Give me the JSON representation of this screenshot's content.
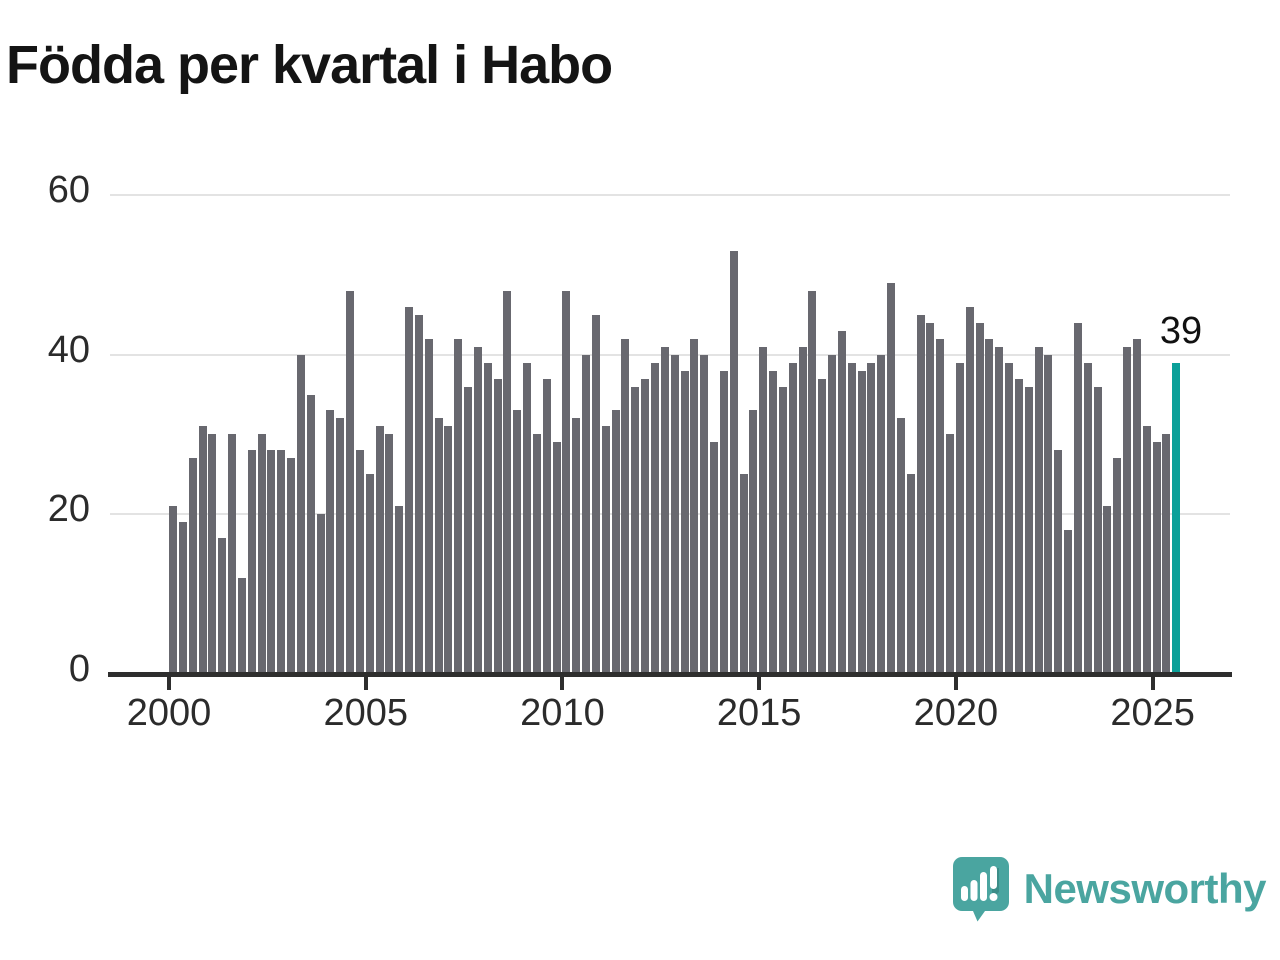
{
  "title": "Födda per kvartal i Habo",
  "annotation_label": "39",
  "branding": {
    "logo_text": "Newsworthy",
    "color": "#4aa5a0"
  },
  "colors": {
    "bar": "#68686f",
    "highlight": "#0ba099",
    "grid": "#e3e3e3",
    "axis": "#2e2e2e",
    "tick_text": "#2b2b2b",
    "title_text": "#141414"
  },
  "chart_data": {
    "type": "bar",
    "title": "Födda per kvartal i Habo",
    "frequency": "quarterly",
    "period_start": "2000 Q1",
    "period_end": "2025 Q3",
    "grid": "horizontal",
    "ylim": [
      0,
      60
    ],
    "y_ticks": [
      {
        "label": "0",
        "value": 0
      },
      {
        "label": "20",
        "value": 20
      },
      {
        "label": "40",
        "value": 40
      },
      {
        "label": "60",
        "value": 60
      }
    ],
    "x_ticks": [
      {
        "label": "2000",
        "year": 2000
      },
      {
        "label": "2005",
        "year": 2005
      },
      {
        "label": "2010",
        "year": 2010
      },
      {
        "label": "2015",
        "year": 2015
      },
      {
        "label": "2020",
        "year": 2020
      },
      {
        "label": "2025",
        "year": 2025
      }
    ],
    "values": [
      21,
      19,
      27,
      31,
      30,
      17,
      30,
      12,
      28,
      30,
      28,
      28,
      27,
      40,
      35,
      20,
      33,
      32,
      48,
      28,
      25,
      31,
      30,
      21,
      46,
      45,
      42,
      32,
      31,
      42,
      36,
      41,
      39,
      37,
      48,
      33,
      39,
      30,
      37,
      29,
      48,
      32,
      40,
      45,
      31,
      33,
      42,
      36,
      37,
      39,
      41,
      40,
      38,
      42,
      40,
      29,
      38,
      53,
      25,
      33,
      41,
      38,
      36,
      39,
      41,
      48,
      37,
      40,
      43,
      39,
      38,
      39,
      40,
      49,
      32,
      25,
      45,
      44,
      42,
      30,
      39,
      46,
      44,
      42,
      41,
      39,
      37,
      36,
      41,
      40,
      28,
      18,
      44,
      39,
      36,
      21,
      27,
      41,
      42,
      31,
      29,
      30,
      39
    ],
    "highlight_last_bar": {
      "value_label": "39",
      "color": "#0ba099"
    },
    "start_year": 2000
  }
}
